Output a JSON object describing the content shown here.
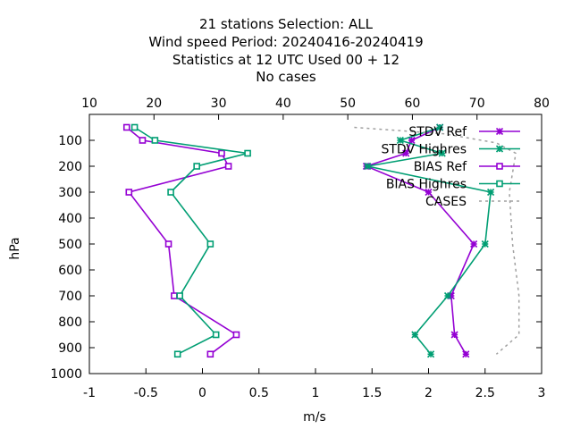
{
  "chart_data": {
    "type": "line",
    "title_lines": [
      "21 stations Selection: ALL",
      "Wind speed  Period: 20240416-20240419",
      "Statistics at 12 UTC  Used  00 + 12",
      "No cases"
    ],
    "xlabel": "m/s",
    "ylabel": "hPa",
    "xlim": [
      -1,
      3
    ],
    "ylim": [
      1000,
      0
    ],
    "x_ticks": [
      "-1",
      "-0.5",
      "0",
      "0.5",
      "1",
      "1.5",
      "2",
      "2.5",
      "3"
    ],
    "x_tick_values": [
      -1,
      -0.5,
      0,
      0.5,
      1,
      1.5,
      2,
      2.5,
      3
    ],
    "y_ticks": [
      "100",
      "200",
      "300",
      "400",
      "500",
      "600",
      "700",
      "800",
      "900",
      "1000"
    ],
    "y_tick_values": [
      100,
      200,
      300,
      400,
      500,
      600,
      700,
      800,
      900,
      1000
    ],
    "x2_ticks": [
      "10",
      "20",
      "30",
      "40",
      "50",
      "60",
      "70",
      "80"
    ],
    "x2_tick_values": [
      10,
      20,
      30,
      40,
      50,
      60,
      70,
      80
    ],
    "x2lim": [
      10,
      80
    ],
    "legend_position": "top-right",
    "series": [
      {
        "name": "STDV Ref",
        "color": "#9400d3",
        "marker": "x",
        "axis": "bottom",
        "points": [
          [
            2.1,
            50
          ],
          [
            1.85,
            100
          ],
          [
            1.8,
            150
          ],
          [
            1.45,
            200
          ],
          [
            2.0,
            300
          ],
          [
            2.4,
            500
          ],
          [
            2.2,
            700
          ],
          [
            2.23,
            850
          ],
          [
            2.33,
            925
          ]
        ]
      },
      {
        "name": "STDV Highres",
        "color": "#009e73",
        "marker": "x",
        "axis": "bottom",
        "points": [
          [
            2.1,
            50
          ],
          [
            1.75,
            100
          ],
          [
            2.12,
            150
          ],
          [
            1.46,
            200
          ],
          [
            2.55,
            300
          ],
          [
            2.5,
            500
          ],
          [
            2.17,
            700
          ],
          [
            1.88,
            850
          ],
          [
            2.02,
            925
          ]
        ]
      },
      {
        "name": "BIAS Ref",
        "color": "#9400d3",
        "marker": "square",
        "axis": "bottom",
        "points": [
          [
            -0.67,
            50
          ],
          [
            -0.53,
            100
          ],
          [
            0.17,
            150
          ],
          [
            0.23,
            200
          ],
          [
            -0.65,
            300
          ],
          [
            -0.3,
            500
          ],
          [
            -0.25,
            700
          ],
          [
            0.3,
            850
          ],
          [
            0.07,
            925
          ]
        ]
      },
      {
        "name": "BIAS Highres",
        "color": "#009e73",
        "marker": "square",
        "axis": "bottom",
        "points": [
          [
            -0.6,
            50
          ],
          [
            -0.42,
            100
          ],
          [
            0.4,
            150
          ],
          [
            -0.05,
            200
          ],
          [
            -0.28,
            300
          ],
          [
            0.07,
            500
          ],
          [
            -0.2,
            700
          ],
          [
            0.12,
            850
          ],
          [
            -0.22,
            925
          ]
        ]
      },
      {
        "name": "CASES",
        "color": "#a0a0a0",
        "marker": "none",
        "dashed": true,
        "axis": "top",
        "points": [
          [
            51,
            50
          ],
          [
            65,
            75
          ],
          [
            73,
            110
          ],
          [
            76,
            150
          ],
          [
            75,
            300
          ],
          [
            75.5,
            500
          ],
          [
            76.5,
            700
          ],
          [
            76.5,
            850
          ],
          [
            73,
            925
          ]
        ]
      }
    ]
  }
}
